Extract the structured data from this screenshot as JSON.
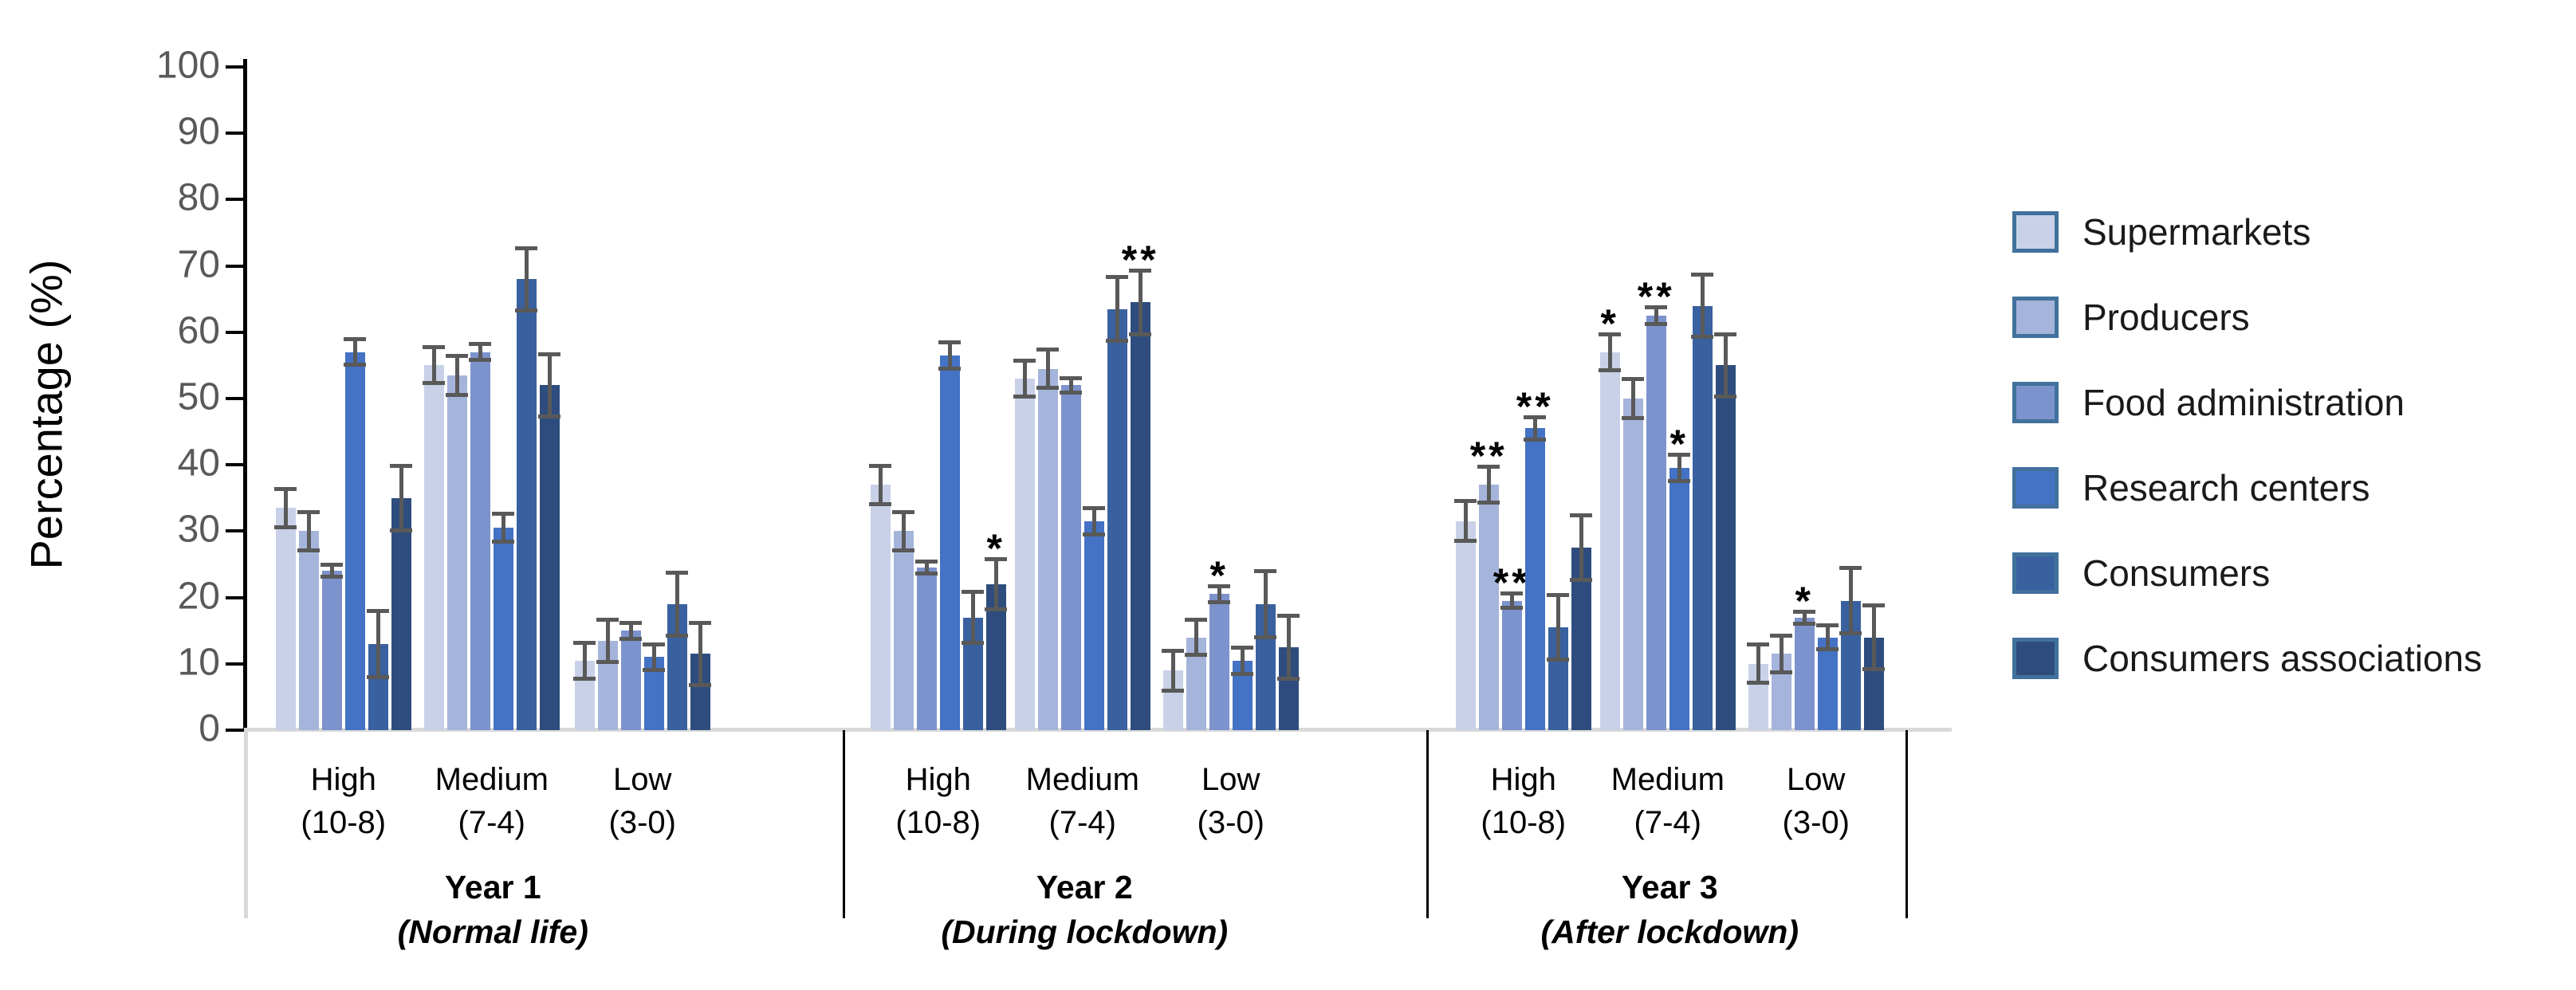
{
  "chart_data": {
    "type": "bar",
    "title": "",
    "ylabel": "Percentage (%)",
    "ylim": [
      0,
      100
    ],
    "ytick_interval": 10,
    "ytick_labels": [
      "0",
      "10",
      "20",
      "30",
      "40",
      "50",
      "60",
      "70",
      "80",
      "90",
      "100"
    ],
    "grid": false,
    "legend_position": "right",
    "error_bar_color": "#595959",
    "series": [
      {
        "name": "Supermarkets",
        "color": "#c8d1e8"
      },
      {
        "name": "Producers",
        "color": "#a5b4da"
      },
      {
        "name": "Food administration",
        "color": "#7d93cd"
      },
      {
        "name": "Research centers",
        "color": "#4472c4"
      },
      {
        "name": "Consumers",
        "color": "#39619f"
      },
      {
        "name": "Consumers associations",
        "color": "#2e4d7e"
      }
    ],
    "years": [
      {
        "label": "Year 1",
        "sublabel": "(Normal life)",
        "categories": [
          {
            "label": "High",
            "sublabel": "(10-8)",
            "values": [
              33.5,
              30,
              24,
              57,
              13,
              35
            ],
            "errors": [
              3.2,
              3.2,
              1.2,
              2.2,
              5.3,
              5.2
            ],
            "sig": [
              "",
              "",
              "",
              "",
              "",
              ""
            ]
          },
          {
            "label": "Medium",
            "sublabel": "(7-4)",
            "values": [
              55,
              53.5,
              57,
              30.5,
              68,
              52
            ],
            "errors": [
              3.0,
              3.2,
              1.5,
              2.4,
              5.0,
              5.0
            ],
            "sig": [
              "",
              "",
              "",
              "",
              "",
              ""
            ]
          },
          {
            "label": "Low",
            "sublabel": "(3-0)",
            "values": [
              10.5,
              13.5,
              15,
              11,
              19,
              11.5
            ],
            "errors": [
              3.0,
              3.5,
              1.5,
              2.2,
              5.0,
              5.0
            ],
            "sig": [
              "",
              "",
              "",
              "",
              "",
              ""
            ]
          }
        ]
      },
      {
        "label": "Year 2",
        "sublabel": "(During lockdown)",
        "categories": [
          {
            "label": "High",
            "sublabel": "(10-8)",
            "values": [
              37,
              30,
              24.5,
              56.5,
              17,
              22
            ],
            "errors": [
              3.2,
              3.2,
              1.2,
              2.3,
              4.1,
              4.1
            ],
            "sig": [
              "",
              "",
              "",
              "",
              "",
              "*"
            ]
          },
          {
            "label": "Medium",
            "sublabel": "(7-4)",
            "values": [
              53,
              54.5,
              52,
              31.5,
              63.5,
              64.5
            ],
            "errors": [
              3.0,
              3.2,
              1.4,
              2.3,
              5.1,
              5.1
            ],
            "sig": [
              "",
              "",
              "",
              "",
              "",
              "**"
            ]
          },
          {
            "label": "Low",
            "sublabel": "(3-0)",
            "values": [
              9,
              14,
              20.5,
              10.5,
              19,
              12.5
            ],
            "errors": [
              3.3,
              3.0,
              1.5,
              2.3,
              5.3,
              5.0
            ],
            "sig": [
              "",
              "",
              "*",
              "",
              "",
              ""
            ]
          }
        ]
      },
      {
        "label": "Year 3",
        "sublabel": "(After lockdown)",
        "categories": [
          {
            "label": "High",
            "sublabel": "(10-8)",
            "values": [
              31.5,
              37,
              19.5,
              45.5,
              15.5,
              27.5
            ],
            "errors": [
              3.3,
              3.0,
              1.4,
              2.0,
              5.2,
              5.2
            ],
            "sig": [
              "",
              "**",
              "**",
              "**",
              "",
              ""
            ]
          },
          {
            "label": "Medium",
            "sublabel": "(7-4)",
            "values": [
              57,
              50,
              62.5,
              39.5,
              64,
              55
            ],
            "errors": [
              3.0,
              3.2,
              1.6,
              2.3,
              5.0,
              5.0
            ],
            "sig": [
              "*",
              "",
              "**",
              "*",
              "",
              ""
            ]
          },
          {
            "label": "Low",
            "sublabel": "(3-0)",
            "values": [
              10,
              11.5,
              17,
              14,
              19.5,
              14
            ],
            "errors": [
              3.2,
              3.1,
              1.2,
              2.1,
              5.2,
              5.1
            ],
            "sig": [
              "",
              "",
              "*",
              "",
              "",
              ""
            ]
          }
        ]
      }
    ]
  }
}
